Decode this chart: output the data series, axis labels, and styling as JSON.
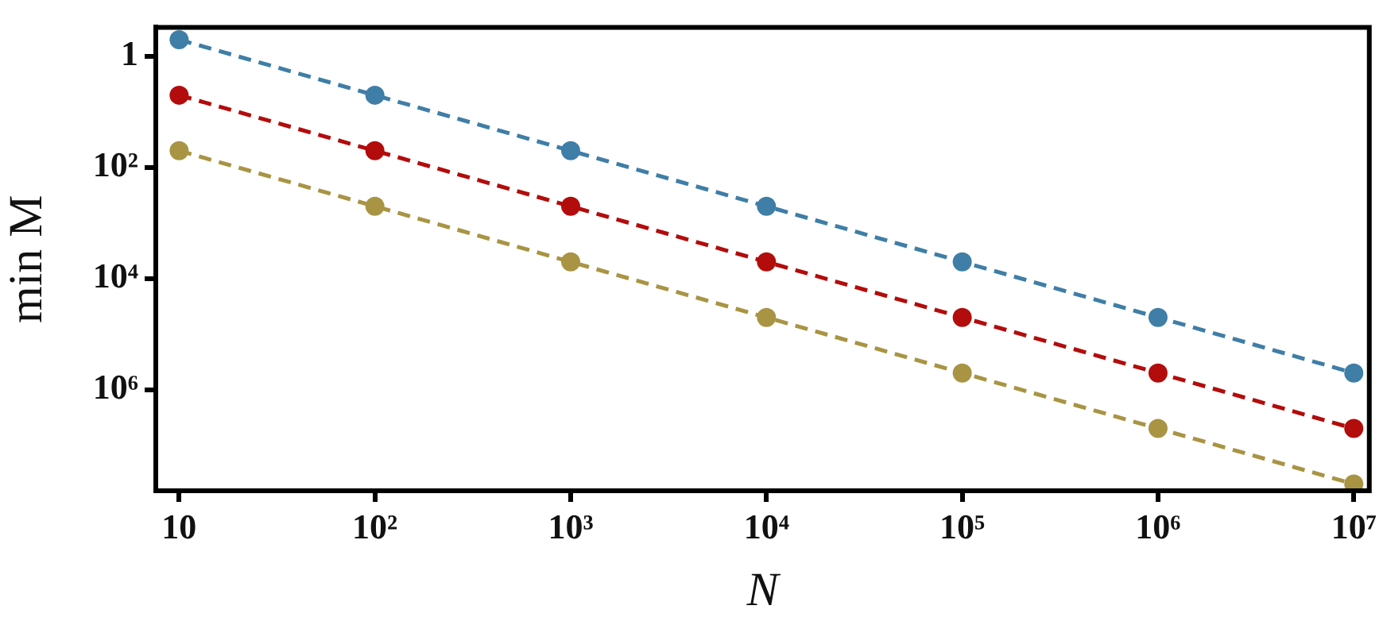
{
  "chart_data": {
    "type": "line",
    "xlabel": "N",
    "ylabel": "min M",
    "log": "xy",
    "grid": false,
    "legend": false,
    "marker": "circle",
    "line_style": "dashed",
    "x": [
      10,
      100,
      1000,
      10000,
      100000,
      1000000,
      10000000
    ],
    "xlim": [
      7.6,
      12000000
    ],
    "xticks": [
      10,
      {
        "value": 100,
        "label": "10²"
      },
      {
        "value": 1000,
        "label": "10³"
      },
      {
        "value": 10000,
        "label": "10⁴"
      },
      {
        "value": 100000,
        "label": "10⁵"
      },
      {
        "value": 1000000,
        "label": "10⁶"
      },
      {
        "value": 10000000,
        "label": "10⁷"
      }
    ],
    "ylim": [
      66000000,
      0.32
    ],
    "yticks": [
      1,
      {
        "value": 100,
        "label": "10²"
      },
      {
        "value": 10000,
        "label": "10⁴"
      },
      {
        "value": 1000000,
        "label": "10⁶"
      }
    ],
    "series": [
      {
        "color": "#3f7ea6",
        "values": [
          0.5,
          5,
          50,
          500,
          5000,
          50000,
          500000
        ]
      },
      {
        "color": "#b30c0c",
        "values": [
          5,
          50,
          500,
          5000,
          50000,
          500000,
          5000000
        ]
      },
      {
        "color": "#a89443",
        "values": [
          50,
          500,
          5000,
          50000,
          500000,
          5000000,
          50000000
        ]
      }
    ]
  }
}
